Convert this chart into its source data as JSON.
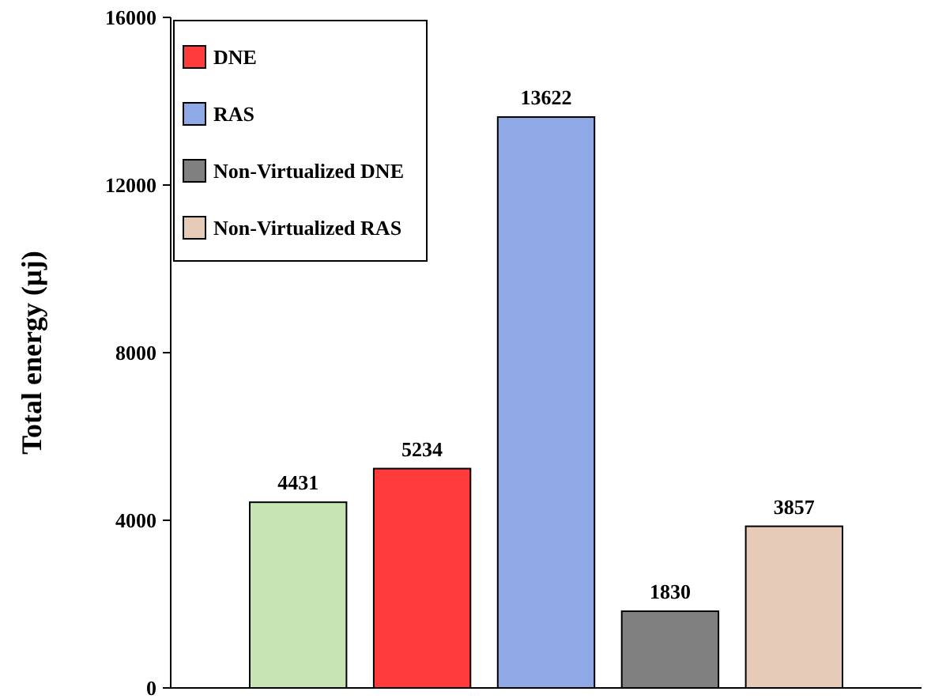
{
  "chart_data": {
    "type": "bar",
    "ylabel": "Total energy (µj)",
    "categories": [
      null
    ],
    "series": [
      {
        "color": "#c6e4b4",
        "values": [
          4431
        ]
      },
      {
        "name": "DNE",
        "color": "#ff3b3b",
        "values": [
          5234
        ]
      },
      {
        "name": "RAS",
        "color": "#8fa8e6",
        "values": [
          13622
        ]
      },
      {
        "name": "Non-Virtualized DNE",
        "color": "#808080",
        "values": [
          1830
        ]
      },
      {
        "name": "Non-Virtualized RAS",
        "color": "#e6cbb8",
        "values": [
          3857
        ]
      }
    ],
    "ylim": [
      0,
      16000
    ],
    "yticks": [
      0,
      4000,
      8000,
      12000,
      16000
    ],
    "data_labels": true,
    "legend": "top left",
    "grid": false
  }
}
